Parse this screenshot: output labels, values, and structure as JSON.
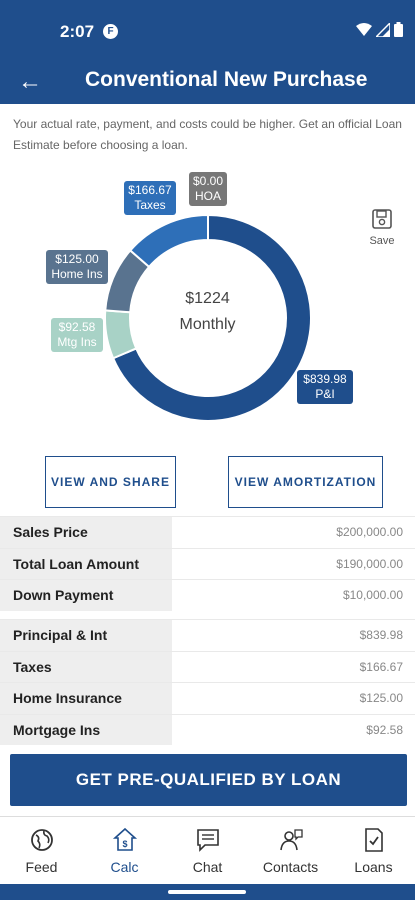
{
  "status": {
    "time": "2:07",
    "carrier": "F"
  },
  "header": {
    "title": "Conventional New Purchase"
  },
  "disclaimer": "Your actual rate, payment, and costs could be higher. Get an official Loan Estimate before choosing a loan.",
  "colors": {
    "primary": "#1f4e8c",
    "pi": "#1f4e8c",
    "taxes": "#2e6fb8",
    "home_ins": "#59738f",
    "mtg_ins": "#a8d2c6",
    "hoa": "#777777"
  },
  "chart_data": {
    "type": "pie",
    "center": {
      "amount": "$1224",
      "label": "Monthly"
    },
    "slices": [
      {
        "name": "P&I",
        "value": 839.98,
        "label": "$839.98"
      },
      {
        "name": "Mtg Ins",
        "value": 92.58,
        "label": "$92.58"
      },
      {
        "name": "Home Ins",
        "value": 125.0,
        "label": "$125.00"
      },
      {
        "name": "Taxes",
        "value": 166.67,
        "label": "$166.67"
      },
      {
        "name": "HOA",
        "value": 0.0,
        "label": "$0.00"
      }
    ]
  },
  "save_label": "Save",
  "buttons": {
    "view_share": "VIEW AND SHARE",
    "view_amort": "VIEW AMORTIZATION",
    "cta": "GET PRE-QUALIFIED BY LOAN"
  },
  "loan_table": [
    {
      "label": "Sales Price",
      "value": "$200,000.00"
    },
    {
      "label": "Total Loan Amount",
      "value": "$190,000.00"
    },
    {
      "label": "Down Payment",
      "value": "$10,000.00"
    }
  ],
  "payment_table": [
    {
      "label": "Principal & Int",
      "value": "$839.98"
    },
    {
      "label": "Taxes",
      "value": "$166.67"
    },
    {
      "label": "Home Insurance",
      "value": "$125.00"
    },
    {
      "label": "Mortgage Ins",
      "value": "$92.58"
    }
  ],
  "nav": [
    {
      "label": "Feed",
      "icon": "globe-icon"
    },
    {
      "label": "Calc",
      "icon": "calculator-icon"
    },
    {
      "label": "Chat",
      "icon": "chat-icon"
    },
    {
      "label": "Contacts",
      "icon": "contacts-icon"
    },
    {
      "label": "Loans",
      "icon": "document-check-icon"
    }
  ]
}
